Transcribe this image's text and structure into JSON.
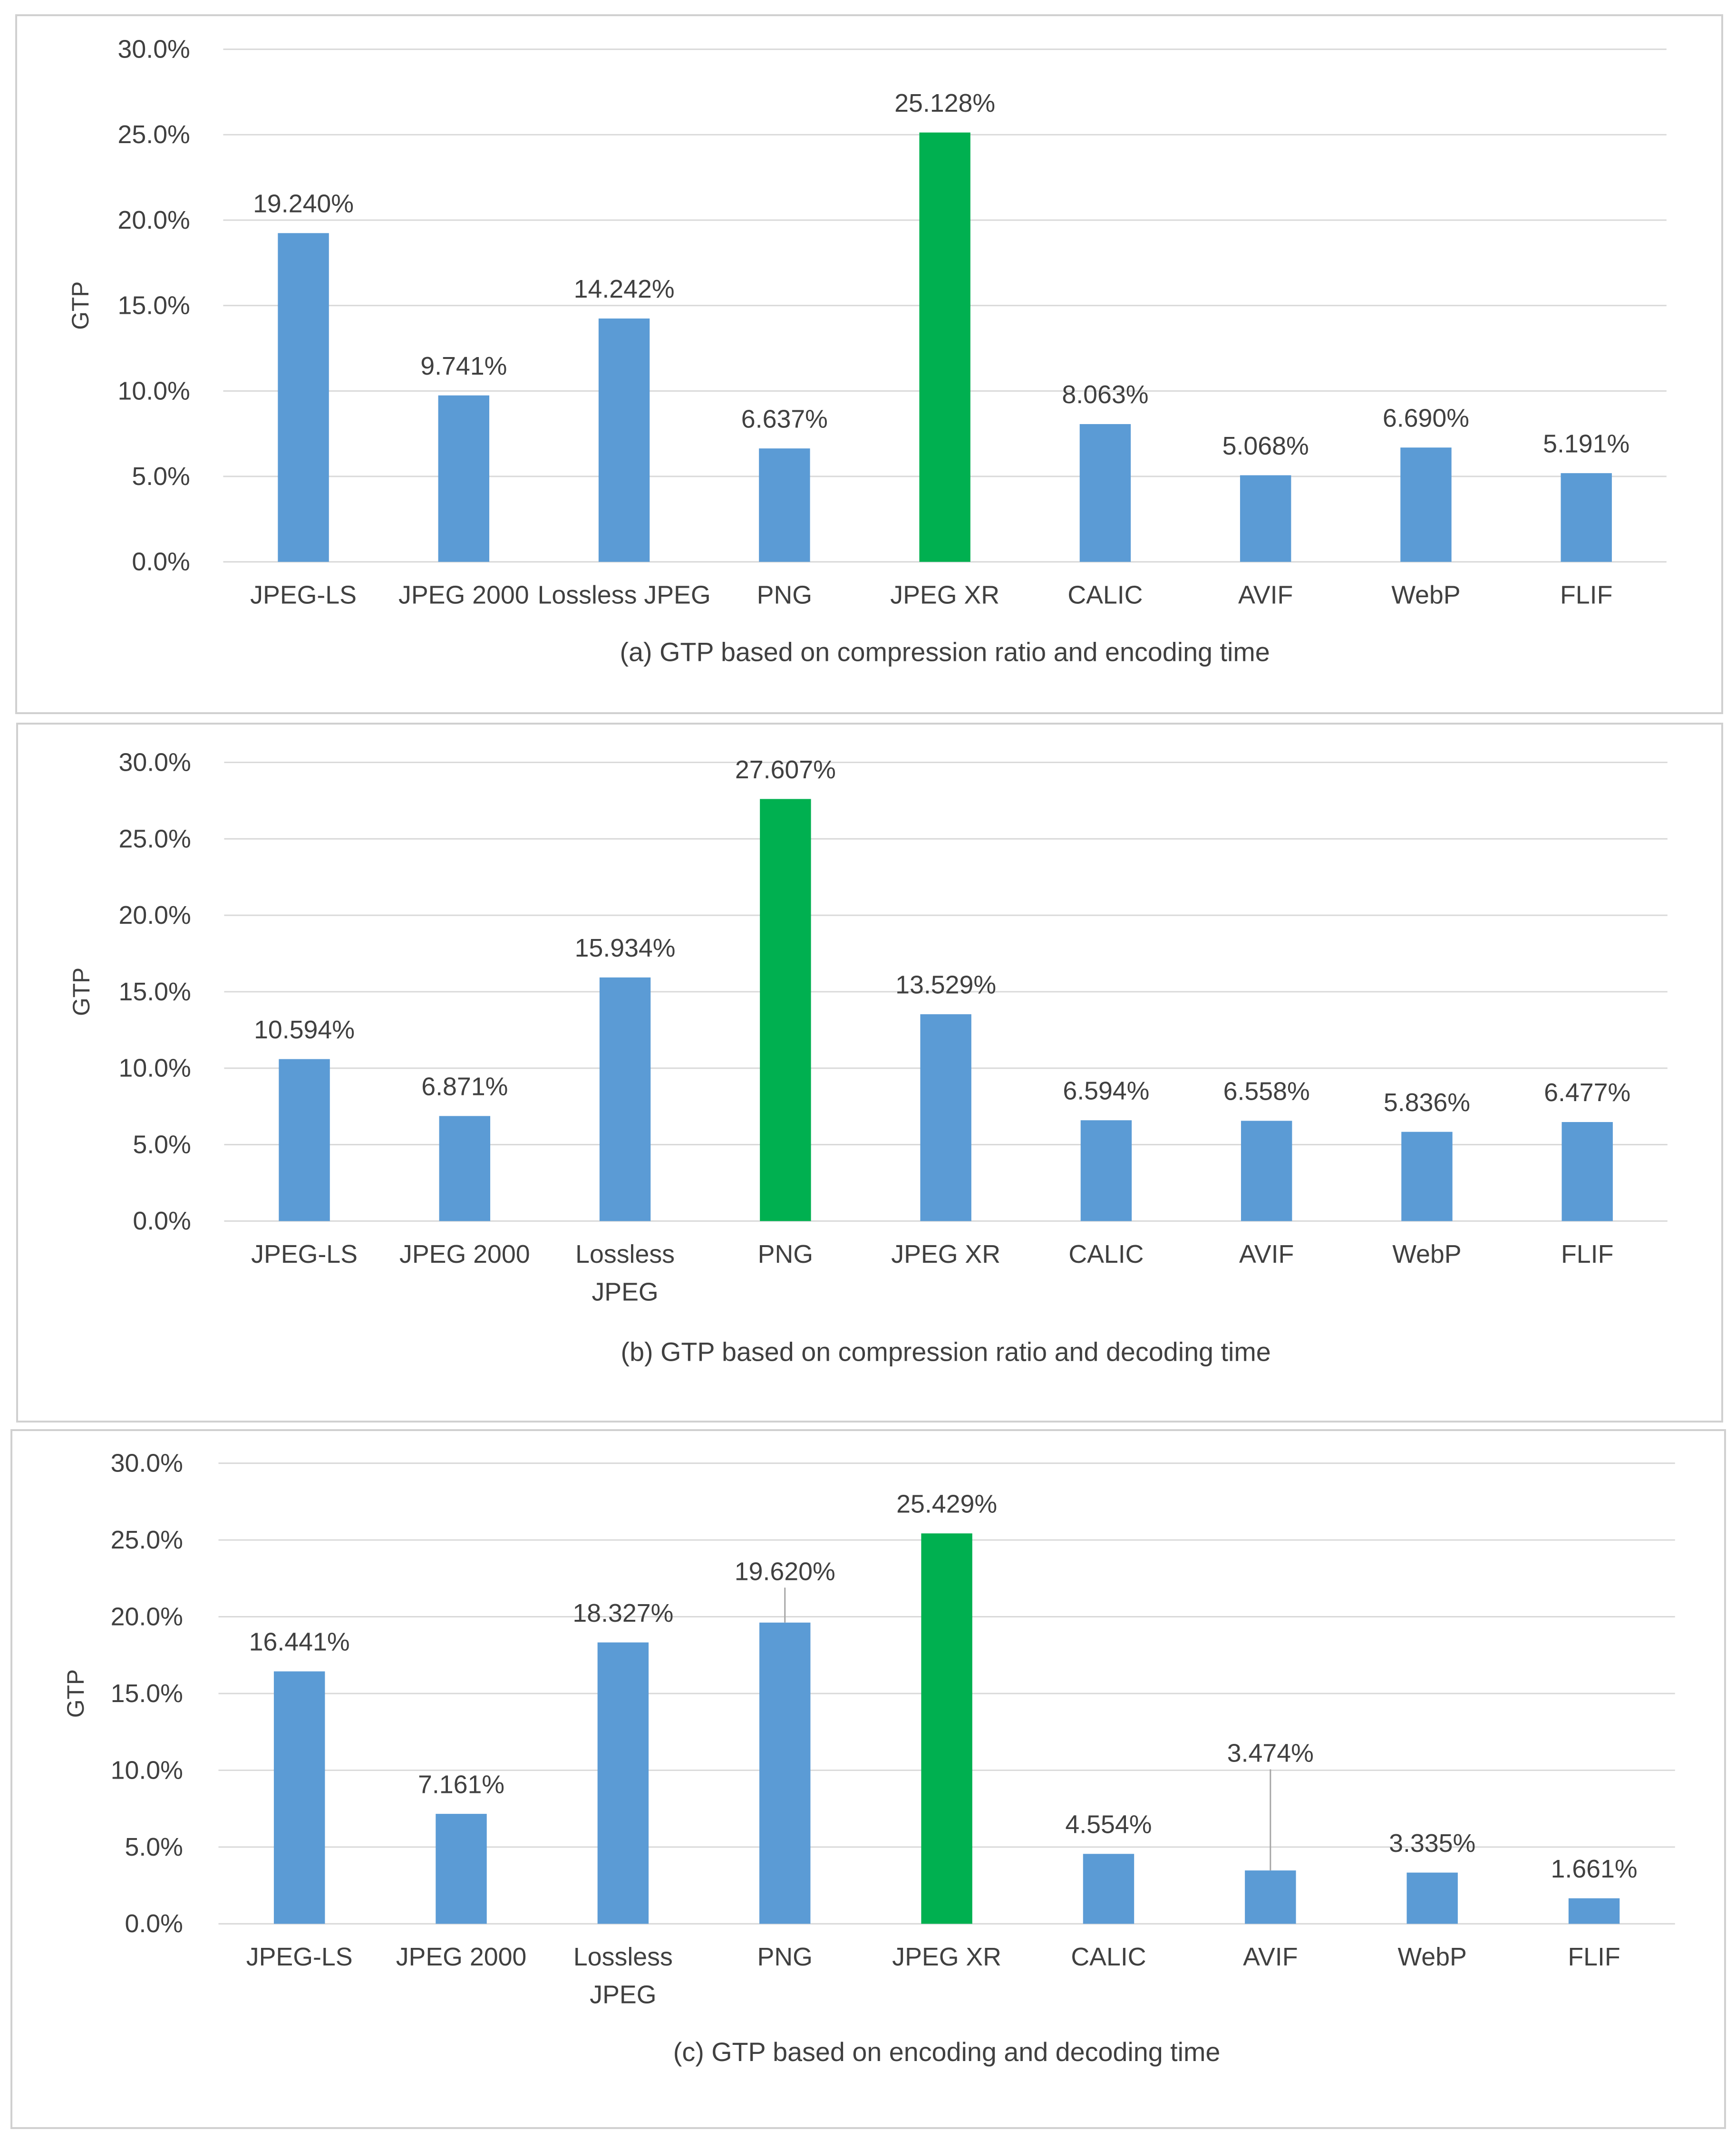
{
  "colors": {
    "bar": "#5b9bd5",
    "highlight": "#00b050",
    "grid": "#d9d9d9",
    "text": "#404040"
  },
  "chart_data": [
    {
      "type": "bar",
      "caption": "(a) GTP based on compression ratio and encoding time",
      "ylabel": "GTP",
      "ylim": [
        0,
        30
      ],
      "yticks": [
        "0.0%",
        "5.0%",
        "10.0%",
        "15.0%",
        "20.0%",
        "25.0%",
        "30.0%"
      ],
      "categories": [
        [
          "JPEG-LS"
        ],
        [
          "JPEG 2000"
        ],
        [
          "Lossless JPEG"
        ],
        [
          "PNG"
        ],
        [
          "JPEG XR"
        ],
        [
          "CALIC"
        ],
        [
          "AVIF"
        ],
        [
          "WebP"
        ],
        [
          "FLIF"
        ]
      ],
      "values": [
        19.24,
        9.741,
        14.242,
        6.637,
        25.128,
        8.063,
        5.068,
        6.69,
        5.191
      ],
      "labels": [
        "19.240%",
        "9.741%",
        "14.242%",
        "6.637%",
        "25.128%",
        "8.063%",
        "5.068%",
        "6.690%",
        "5.191%"
      ],
      "highlight_index": 4,
      "leaders": []
    },
    {
      "type": "bar",
      "caption": "(b) GTP based on compression ratio and decoding time",
      "ylabel": "GTP",
      "ylim": [
        0,
        30
      ],
      "yticks": [
        "0.0%",
        "5.0%",
        "10.0%",
        "15.0%",
        "20.0%",
        "25.0%",
        "30.0%"
      ],
      "categories": [
        [
          "JPEG-LS"
        ],
        [
          "JPEG 2000"
        ],
        [
          "Lossless",
          "JPEG"
        ],
        [
          "PNG"
        ],
        [
          "JPEG XR"
        ],
        [
          "CALIC"
        ],
        [
          "AVIF"
        ],
        [
          "WebP"
        ],
        [
          "FLIF"
        ]
      ],
      "values": [
        10.594,
        6.871,
        15.934,
        27.607,
        13.529,
        6.594,
        6.558,
        5.836,
        6.477
      ],
      "labels": [
        "10.594%",
        "6.871%",
        "15.934%",
        "27.607%",
        "13.529%",
        "6.594%",
        "6.558%",
        "5.836%",
        "6.477%"
      ],
      "highlight_index": 3,
      "leaders": []
    },
    {
      "type": "bar",
      "caption": "(c) GTP based on encoding and decoding time",
      "ylabel": "GTP",
      "ylim": [
        0,
        30
      ],
      "yticks": [
        "0.0%",
        "5.0%",
        "10.0%",
        "15.0%",
        "20.0%",
        "25.0%",
        "30.0%"
      ],
      "categories": [
        [
          "JPEG-LS"
        ],
        [
          "JPEG 2000"
        ],
        [
          "Lossless",
          "JPEG"
        ],
        [
          "PNG"
        ],
        [
          "JPEG XR"
        ],
        [
          "CALIC"
        ],
        [
          "AVIF"
        ],
        [
          "WebP"
        ],
        [
          "FLIF"
        ]
      ],
      "values": [
        16.441,
        7.161,
        18.327,
        19.62,
        25.429,
        4.554,
        3.474,
        3.335,
        1.661
      ],
      "labels": [
        "16.441%",
        "7.161%",
        "18.327%",
        "19.620%",
        "25.429%",
        "4.554%",
        "3.474%",
        "3.335%",
        "1.661%"
      ],
      "highlight_index": 4,
      "leaders": [
        3,
        6
      ]
    }
  ]
}
